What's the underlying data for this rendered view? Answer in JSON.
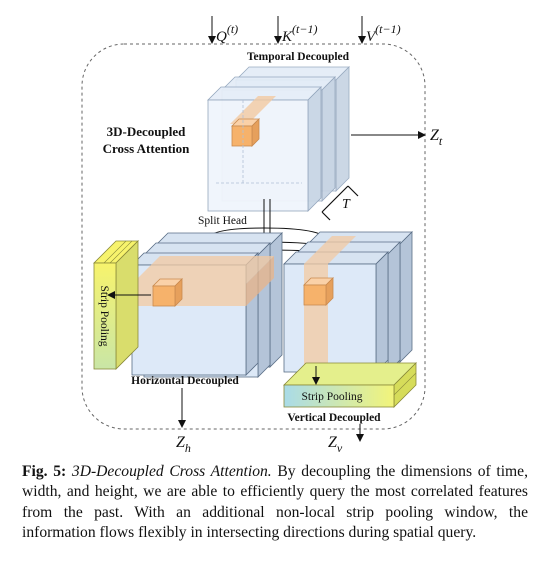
{
  "diagram": {
    "inputs": {
      "q": {
        "base": "Q",
        "sup": "(t)"
      },
      "k": {
        "base": "K",
        "sup": "(t−1)"
      },
      "v": {
        "base": "V",
        "sup": "(t−1)"
      }
    },
    "block_title_line1": "3D-Decoupled",
    "block_title_line2": "Cross Attention",
    "temporal_label": "Temporal Decoupled",
    "t_label": "T",
    "split_head_label": "Split Head",
    "strip_pooling_left": "Strip Pooling",
    "strip_pooling_bottom": "Strip Pooling",
    "horizontal_label": "Horizontal Decoupled",
    "vertical_label": "Vertical Decoupled",
    "outputs": {
      "zt": {
        "base": "Z",
        "sub": "t"
      },
      "zh": {
        "base": "Z",
        "sub": "h"
      },
      "zv": {
        "base": "Z",
        "sub": "v"
      }
    }
  },
  "caption": {
    "lead": "Fig. 5:",
    "title": "3D-Decoupled Cross Attention.",
    "body": "By decoupling the dimensions of time, width, and height, we are able to efficiently query the most correlated features from the past. With an additional non-local strip pooling window, the information flows flexibly in intersecting directions during spatial query."
  },
  "colors": {
    "panel_face": "#dce9f8",
    "panel_edge": "#5a6e86",
    "panel_side": "#b9c9dc",
    "orange": "#f6b26b",
    "orange_band": "#f3c9a1",
    "yellow": "#f5f27a",
    "yellow_green": "#cde58a",
    "strip_blue": "#bfe0ee"
  }
}
